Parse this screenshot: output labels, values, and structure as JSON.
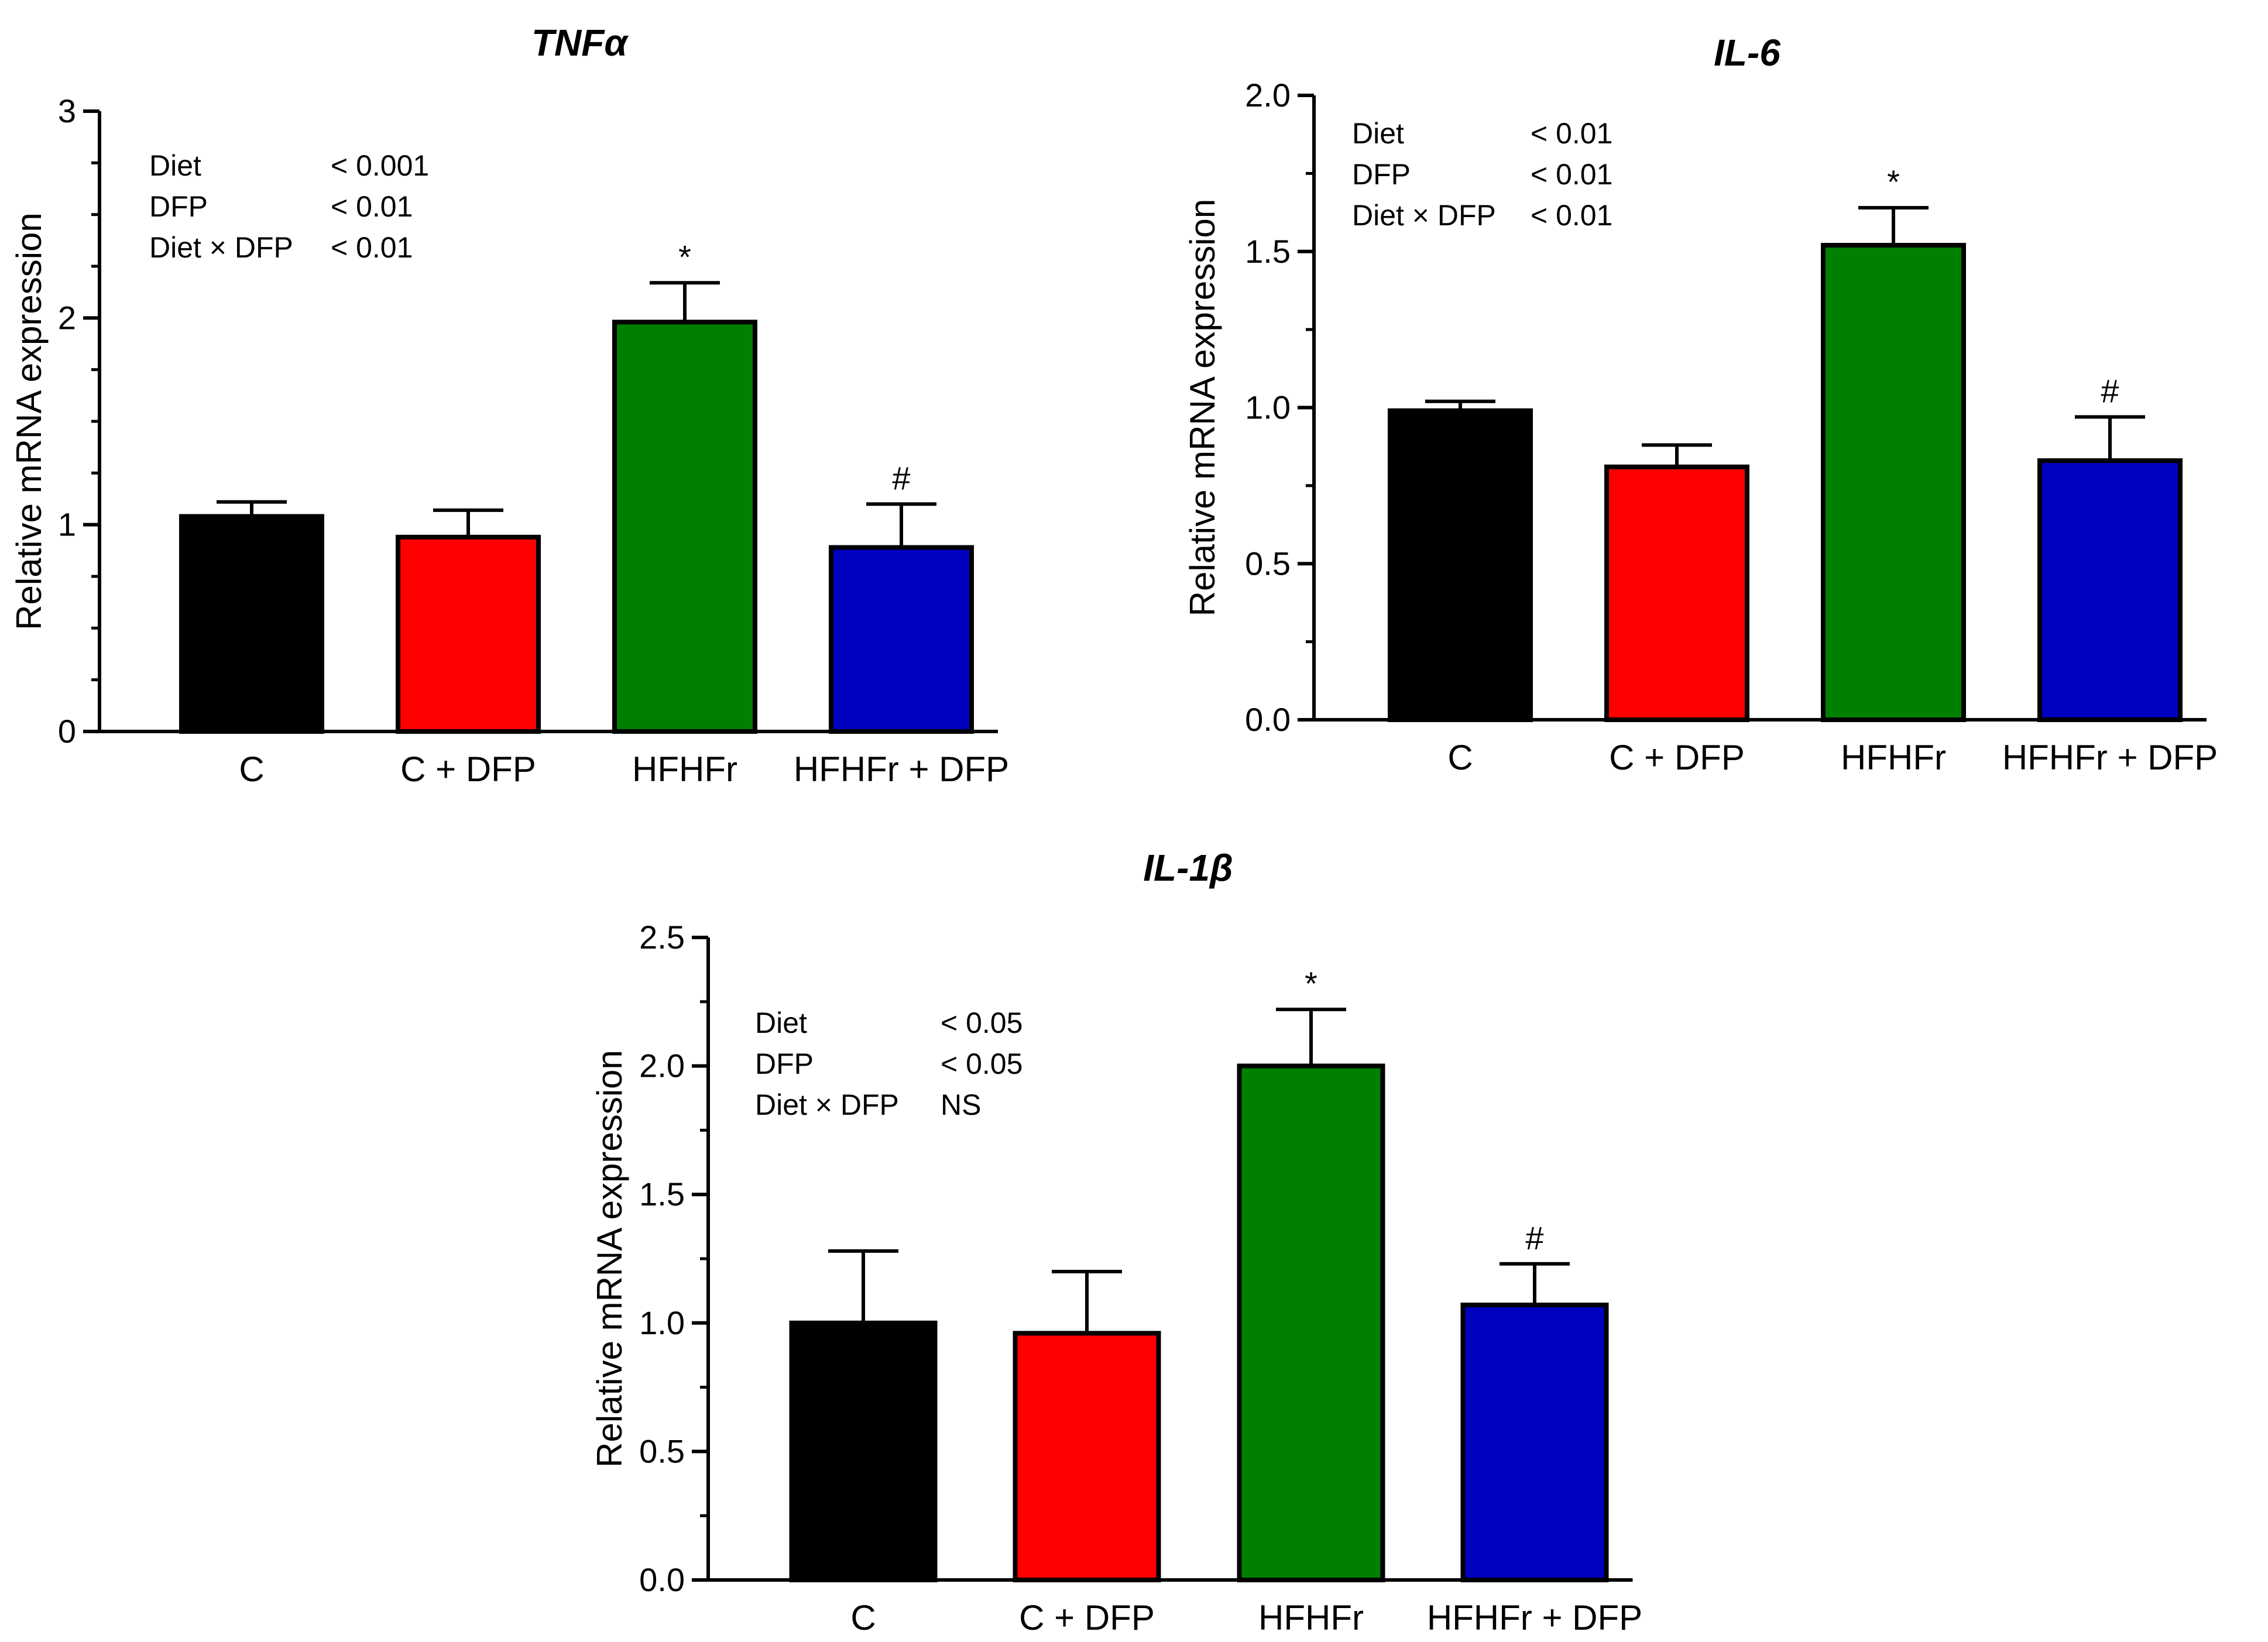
{
  "chart_data": [
    {
      "type": "bar",
      "title": "TNFα",
      "ylabel": "Relative mRNA expression",
      "ylim": [
        0,
        3
      ],
      "yticks": [
        "0",
        "1",
        "2",
        "3"
      ],
      "categories": [
        "C",
        "C + DFP",
        "HFHFr",
        "HFHFr + DFP"
      ],
      "values": [
        1.04,
        0.94,
        1.98,
        0.89
      ],
      "errors": [
        0.07,
        0.13,
        0.19,
        0.21
      ],
      "colors": [
        "#000000",
        "#ff0000",
        "#008000",
        "#0000c0"
      ],
      "markers": [
        "",
        "",
        "*",
        "#"
      ],
      "stats": [
        {
          "label": "Diet",
          "value": "< 0.001"
        },
        {
          "label": "DFP",
          "value": "< 0.01"
        },
        {
          "label": "Diet × DFP",
          "value": "< 0.01"
        }
      ]
    },
    {
      "type": "bar",
      "title": "IL-6",
      "ylabel": "Relative mRNA expression",
      "ylim": [
        0,
        2.0
      ],
      "yticks": [
        "0.0",
        "0.5",
        "1.0",
        "1.5",
        "2.0"
      ],
      "categories": [
        "C",
        "C + DFP",
        "HFHFr",
        "HFHFr + DFP"
      ],
      "values": [
        0.99,
        0.81,
        1.52,
        0.83
      ],
      "errors": [
        0.03,
        0.07,
        0.12,
        0.14
      ],
      "colors": [
        "#000000",
        "#ff0000",
        "#008000",
        "#0000c0"
      ],
      "markers": [
        "",
        "",
        "*",
        "#"
      ],
      "stats": [
        {
          "label": "Diet",
          "value": "< 0.01"
        },
        {
          "label": "DFP",
          "value": "< 0.01"
        },
        {
          "label": "Diet × DFP",
          "value": "< 0.01"
        }
      ]
    },
    {
      "type": "bar",
      "title": "IL-1β",
      "ylabel": "Relative mRNA expression",
      "ylim": [
        0,
        2.5
      ],
      "yticks": [
        "0.0",
        "0.5",
        "1.0",
        "1.5",
        "2.0",
        "2.5"
      ],
      "categories": [
        "C",
        "C + DFP",
        "HFHFr",
        "HFHFr + DFP"
      ],
      "values": [
        1.0,
        0.96,
        2.0,
        1.07
      ],
      "errors": [
        0.28,
        0.24,
        0.22,
        0.16
      ],
      "colors": [
        "#000000",
        "#ff0000",
        "#008000",
        "#0000c0"
      ],
      "markers": [
        "",
        "",
        "*",
        "#"
      ],
      "stats": [
        {
          "label": "Diet",
          "value": "< 0.05"
        },
        {
          "label": "DFP",
          "value": "< 0.05"
        },
        {
          "label": "Diet × DFP",
          "value": "NS"
        }
      ]
    }
  ]
}
